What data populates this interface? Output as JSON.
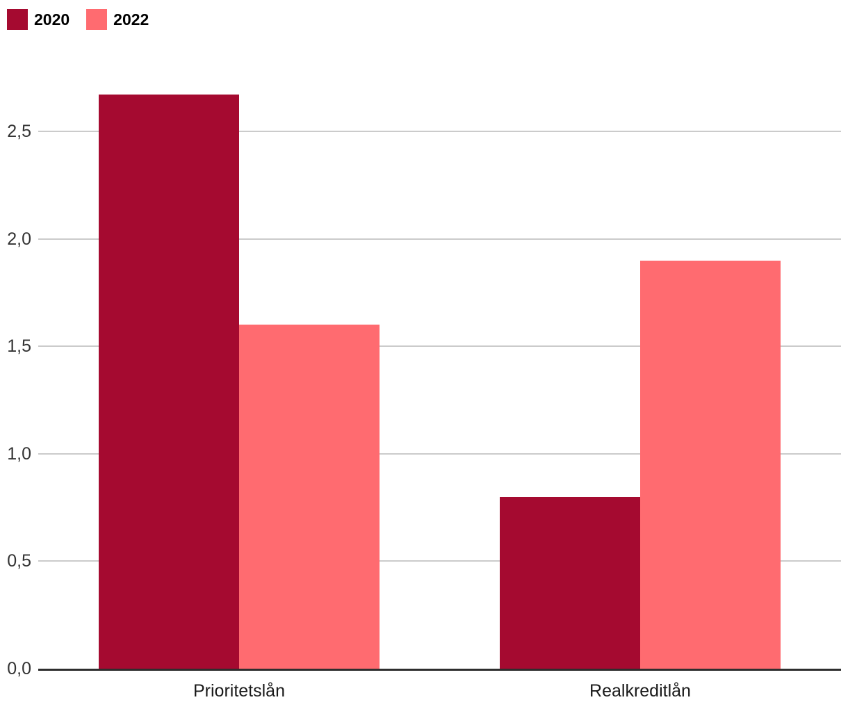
{
  "chart_data": {
    "type": "bar",
    "title": "",
    "xlabel": "",
    "ylabel": "",
    "categories": [
      "Prioritetslån",
      "Realkreditlån"
    ],
    "series": [
      {
        "name": "2020",
        "color": "#a50a30",
        "values": [
          2.67,
          0.8
        ]
      },
      {
        "name": "2022",
        "color": "#ff6b70",
        "values": [
          1.6,
          1.9
        ]
      }
    ],
    "yticks": [
      {
        "label": "0,0",
        "value": 0.0
      },
      {
        "label": "0,5",
        "value": 0.5
      },
      {
        "label": "1,0",
        "value": 1.0
      },
      {
        "label": "1,5",
        "value": 1.5
      },
      {
        "label": "2,0",
        "value": 2.0
      },
      {
        "label": "2,5",
        "value": 2.5
      }
    ],
    "ylim": [
      0,
      2.5
    ],
    "grid": true,
    "legend_position": "top-left",
    "decimal_separator": ","
  },
  "colors": {
    "background": "#ffffff",
    "gridline": "#cbcbcb",
    "axis_line": "#2e2e2e",
    "tick_text": "#333333",
    "category_text": "#1a1a1a",
    "legend_text": "#000000"
  }
}
